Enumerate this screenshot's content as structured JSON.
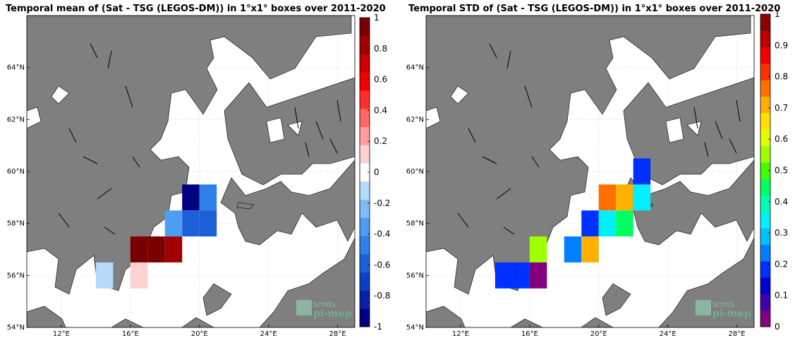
{
  "chart_data": [
    {
      "type": "heatmap",
      "title": "Temporal mean of (Sat - TSG (LEGOS-DM)) in 1°x1° boxes over 2011-2020",
      "x_ticks": [
        "12°E",
        "16°E",
        "20°E",
        "24°E",
        "28°E"
      ],
      "y_ticks": [
        "54°N",
        "56°N",
        "58°N",
        "60°N",
        "62°N",
        "64°N"
      ],
      "xlim": [
        10,
        29
      ],
      "ylim": [
        54,
        66
      ],
      "grid": true,
      "colormap": [
        "#000080",
        "#0b1fa8",
        "#0d3fc4",
        "#1c5fd9",
        "#2f7fe8",
        "#4f9df2",
        "#7fbcf7",
        "#b7dafb",
        "#ffffff",
        "#ffd1d1",
        "#ff9e9e",
        "#ff6666",
        "#ff2e2e",
        "#f20000",
        "#cc0000",
        "#a00000",
        "#7a0000"
      ],
      "colorbar_range": [
        -1,
        1
      ],
      "colorbar_ticks": [
        "-1",
        "-0.8",
        "-0.6",
        "-0.4",
        "-0.2",
        "0",
        "0.2",
        "0.4",
        "0.6",
        "0.8",
        "1"
      ],
      "cells": [
        {
          "lon": 19.5,
          "lat": 59,
          "value": -1.0
        },
        {
          "lon": 20.5,
          "lat": 59,
          "value": -0.45
        },
        {
          "lon": 18.5,
          "lat": 58,
          "value": -0.4
        },
        {
          "lon": 19.5,
          "lat": 58,
          "value": -0.55
        },
        {
          "lon": 20.5,
          "lat": 58,
          "value": -0.6
        },
        {
          "lon": 16.5,
          "lat": 57,
          "value": 0.9
        },
        {
          "lon": 17.5,
          "lat": 57,
          "value": 1.0
        },
        {
          "lon": 18.5,
          "lat": 57,
          "value": 0.85
        },
        {
          "lon": 14.5,
          "lat": 56,
          "value": -0.15
        },
        {
          "lon": 16.5,
          "lat": 56,
          "value": 0.15
        }
      ]
    },
    {
      "type": "heatmap",
      "title": "Temporal STD of (Sat - TSG (LEGOS-DM)) in 1°x1° boxes over 2011-2020",
      "x_ticks": [
        "12°E",
        "16°E",
        "20°E",
        "24°E",
        "28°E"
      ],
      "y_ticks": [
        "54°N",
        "56°N",
        "58°N",
        "60°N",
        "62°N",
        "64°N"
      ],
      "xlim": [
        10,
        29
      ],
      "ylim": [
        54,
        66
      ],
      "grid": true,
      "colormap": [
        "#800080",
        "#4000b0",
        "#0000d0",
        "#0030ff",
        "#0080ff",
        "#00c0ff",
        "#00f0ff",
        "#00ffb0",
        "#00ff60",
        "#40ff00",
        "#a0ff00",
        "#e0ff00",
        "#ffe000",
        "#ffb000",
        "#ff7000",
        "#ff3000",
        "#f00000",
        "#c00000",
        "#8b0000"
      ],
      "colorbar_range": [
        0,
        1
      ],
      "colorbar_ticks": [
        "0",
        "0.1",
        "0.2",
        "0.3",
        "0.4",
        "0.5",
        "0.6",
        "0.7",
        "0.8",
        "0.9",
        "1"
      ],
      "cells": [
        {
          "lon": 22.5,
          "lat": 60,
          "value": 0.2
        },
        {
          "lon": 20.5,
          "lat": 59,
          "value": 0.75
        },
        {
          "lon": 21.5,
          "lat": 59,
          "value": 0.7
        },
        {
          "lon": 22.5,
          "lat": 59,
          "value": 0.35
        },
        {
          "lon": 19.5,
          "lat": 58,
          "value": 0.2
        },
        {
          "lon": 20.5,
          "lat": 58,
          "value": 0.35
        },
        {
          "lon": 21.5,
          "lat": 58,
          "value": 0.45
        },
        {
          "lon": 16.5,
          "lat": 57,
          "value": 0.55
        },
        {
          "lon": 18.5,
          "lat": 57,
          "value": 0.25
        },
        {
          "lon": 19.5,
          "lat": 57,
          "value": 0.7
        },
        {
          "lon": 14.5,
          "lat": 56,
          "value": 0.2
        },
        {
          "lon": 15.5,
          "lat": 56,
          "value": 0.2
        },
        {
          "lon": 16.5,
          "lat": 56,
          "value": 0.05
        }
      ]
    }
  ],
  "logo": {
    "line1": "smos",
    "line2": "pi-mep"
  },
  "colors": {
    "land": "#7f7f7f",
    "land_edge": "#000000",
    "grid": "#d0d0d0"
  }
}
